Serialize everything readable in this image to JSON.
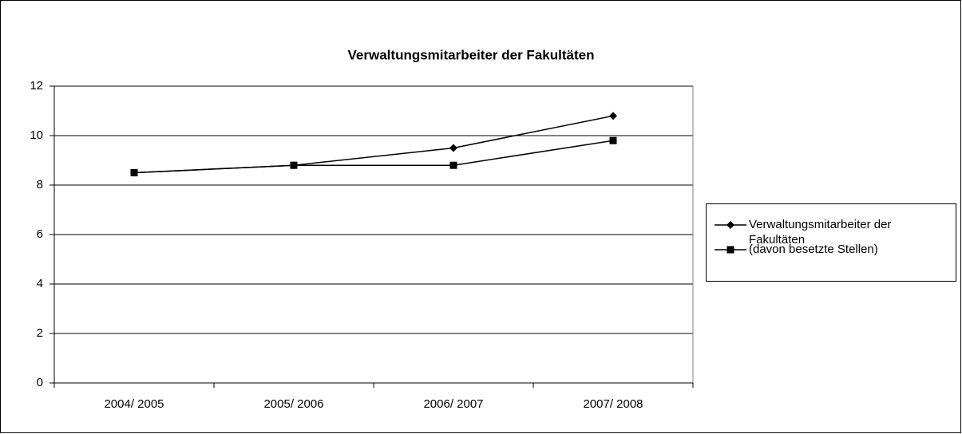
{
  "chart_data": {
    "type": "line",
    "title": "Verwaltungsmitarbeiter der Fakultäten",
    "categories": [
      "2004/ 2005",
      "2005/ 2006",
      "2006/ 2007",
      "2007/ 2008"
    ],
    "series": [
      {
        "name": "Verwaltungsmitarbeiter der Fakultäten",
        "color": "#000000",
        "marker": "diamond",
        "values": [
          8.5,
          8.8,
          9.5,
          10.8
        ]
      },
      {
        "name": "(davon besetzte Stellen)",
        "color": "#000000",
        "marker": "square",
        "values": [
          8.5,
          8.8,
          8.8,
          9.8
        ]
      }
    ],
    "ylim": [
      0,
      12
    ],
    "yticks": [
      0,
      2,
      4,
      6,
      8,
      10,
      12
    ],
    "grid": true,
    "legend": "right"
  }
}
